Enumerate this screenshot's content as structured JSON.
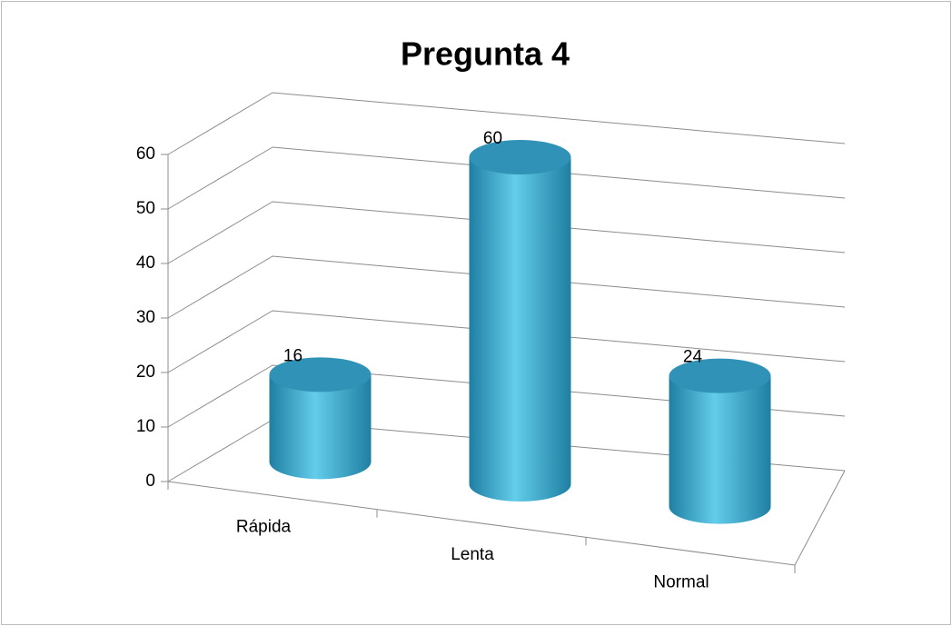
{
  "chart_data": {
    "type": "bar3d",
    "title": "Pregunta 4",
    "categories": [
      "Rápida",
      "Lenta",
      "Normal"
    ],
    "values": [
      16,
      60,
      24
    ],
    "color": "#35a6c9",
    "ylim": [
      0,
      60
    ],
    "yticks": [
      0,
      10,
      20,
      30,
      40,
      50,
      60
    ],
    "grid": true
  }
}
